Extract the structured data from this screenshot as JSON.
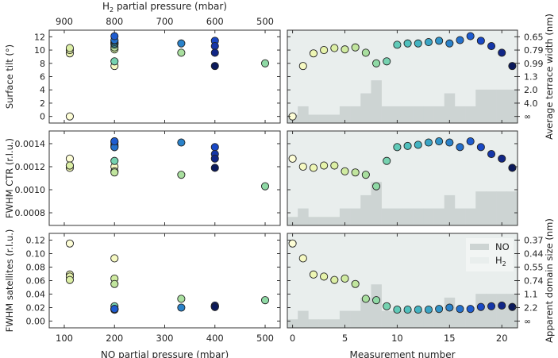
{
  "chart_data": {
    "type": "scatter",
    "measurements": [
      0,
      1,
      2,
      3,
      4,
      5,
      6,
      7,
      8,
      9,
      10,
      11,
      12,
      13,
      14,
      15,
      16,
      17,
      18,
      19,
      20,
      21
    ],
    "no_pressure_mbar": [
      111,
      200,
      111,
      111,
      111,
      200,
      200,
      333,
      500,
      200,
      200,
      200,
      200,
      200,
      200,
      333,
      200,
      200,
      400,
      400,
      400,
      400
    ],
    "h2_pressure_mbar": [
      889,
      800,
      889,
      889,
      889,
      800,
      800,
      667,
      500,
      800,
      800,
      800,
      800,
      800,
      800,
      667,
      800,
      800,
      600,
      600,
      600,
      600
    ],
    "colors": [
      "#fdfdd6",
      "#f6f9c2",
      "#eef6b4",
      "#e6f3ab",
      "#dcefa5",
      "#d0eba1",
      "#c1e59e",
      "#a9df9f",
      "#8fd9a5",
      "#76d2b0",
      "#60cab8",
      "#50c0bd",
      "#43b3c1",
      "#3aa4c4",
      "#3194c8",
      "#2a82ca",
      "#2470cc",
      "#1e5cd0",
      "#1948c6",
      "#1536a8",
      "#112686",
      "#0b1a5c"
    ],
    "panels": [
      {
        "id": "tilt",
        "ylabel": "Surface tilt (°)",
        "ylim": [
          -1,
          13
        ],
        "yticks": [
          0,
          2,
          4,
          6,
          8,
          10,
          12
        ],
        "ytick_labels": [
          "0",
          "2",
          "4",
          "6",
          "8",
          "10",
          "12"
        ],
        "right_ylabel": "Average terrace width (nm)",
        "right_ytick_values": [
          12,
          10,
          8,
          6,
          4,
          2,
          0
        ],
        "right_ytick_labels": [
          "0.65",
          "0.79",
          "0.99",
          "1.3",
          "2.0",
          "4.0",
          "∞"
        ],
        "values": [
          0,
          7.6,
          9.5,
          10.0,
          10.3,
          10.1,
          10.4,
          9.6,
          8.0,
          8.3,
          10.8,
          11.0,
          11.0,
          11.2,
          11.4,
          11.0,
          11.5,
          12.1,
          11.4,
          10.6,
          9.6,
          7.6
        ]
      },
      {
        "id": "ctr",
        "ylabel": "FWHM CTR (r.l.u.)",
        "ylim": [
          0.00069,
          0.00151
        ],
        "yticks": [
          0.0008,
          0.001,
          0.0012,
          0.0014
        ],
        "ytick_labels": [
          "0.0008",
          "0.0010",
          "0.0012",
          "0.0014"
        ],
        "right_ylabel": "",
        "right_ytick_values": [],
        "right_ytick_labels": [],
        "values": [
          0.00127,
          0.0012,
          0.00119,
          0.00121,
          0.00121,
          0.00116,
          0.00115,
          0.00113,
          0.00103,
          0.00125,
          0.00137,
          0.00138,
          0.00139,
          0.00141,
          0.00142,
          0.00141,
          0.00137,
          0.00142,
          0.00137,
          0.00131,
          0.00127,
          0.00119
        ]
      },
      {
        "id": "sat",
        "ylabel": "FWHM satellites (r.l.u.)",
        "ylim": [
          -0.01,
          0.13
        ],
        "yticks": [
          0.0,
          0.02,
          0.04,
          0.06,
          0.08,
          0.1,
          0.12
        ],
        "ytick_labels": [
          "0.00",
          "0.02",
          "0.04",
          "0.06",
          "0.08",
          "0.10",
          "0.12"
        ],
        "right_ylabel": "Apparent domain size (nm)",
        "right_ytick_values": [
          0.12,
          0.1,
          0.08,
          0.06,
          0.04,
          0.02,
          0.0
        ],
        "right_ytick_labels": [
          "0.37",
          "0.44",
          "0.55",
          "0.74",
          "1.1",
          "2.2",
          "∞"
        ],
        "values": [
          0.115,
          0.093,
          0.069,
          0.066,
          0.061,
          0.063,
          0.055,
          0.033,
          0.031,
          0.022,
          0.017,
          0.017,
          0.017,
          0.017,
          0.018,
          0.02,
          0.018,
          0.018,
          0.021,
          0.022,
          0.023,
          0.021
        ]
      }
    ],
    "left_x": {
      "xlabel": "NO partial pressure (mbar)",
      "xlim": [
        70,
        530
      ],
      "xticks": [
        100,
        200,
        300,
        400,
        500
      ],
      "xtick_labels": [
        "100",
        "200",
        "300",
        "400",
        "500"
      ]
    },
    "top_x": {
      "xlabel_main": "H",
      "xlabel_sub": "2",
      "xlabel_rest": " partial pressure (mbar)",
      "xticks": [
        900,
        800,
        700,
        600,
        500
      ],
      "xtick_labels": [
        "900",
        "800",
        "700",
        "600",
        "500"
      ]
    },
    "right_x": {
      "xlabel": "Measurement number",
      "xlim": [
        -0.5,
        21.5
      ],
      "xticks": [
        0,
        5,
        10,
        15,
        20
      ],
      "xtick_labels": [
        "0",
        "5",
        "10",
        "15",
        "20"
      ]
    },
    "legend": {
      "placement": "top-right",
      "entries": [
        {
          "label": "NO",
          "color": "#cdd4d3"
        },
        {
          "label": "H",
          "sub": "2",
          "color": "#e9eeed"
        }
      ]
    },
    "background_colors": {
      "no": "#cdd4d3",
      "h2": "#e9eeed"
    },
    "grid": false
  }
}
